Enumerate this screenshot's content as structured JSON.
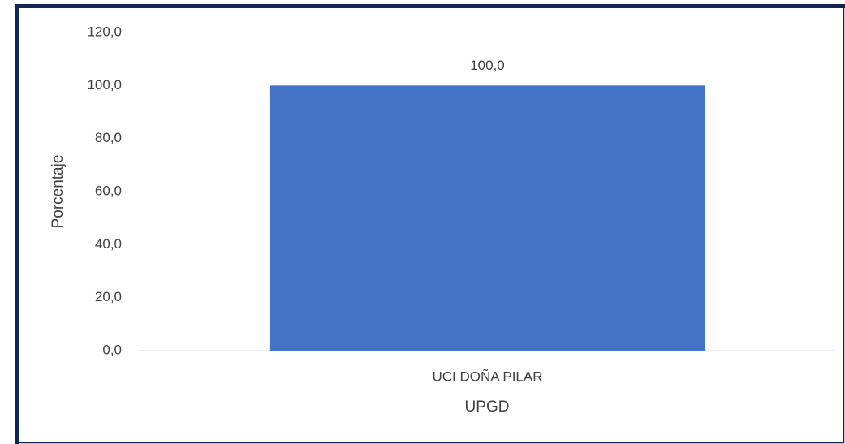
{
  "chart_data": {
    "type": "bar",
    "categories": [
      "UCI DOÑA PILAR"
    ],
    "values": [
      100
    ],
    "value_labels": [
      "100,0"
    ],
    "color": "#4472c4",
    "ylim": [
      0,
      120
    ],
    "yticks": [
      {
        "value": 0,
        "label": "0,0"
      },
      {
        "value": 20,
        "label": "20,0"
      },
      {
        "value": 40,
        "label": "40,0"
      },
      {
        "value": 60,
        "label": "60,0"
      },
      {
        "value": 80,
        "label": "80,0"
      },
      {
        "value": 100,
        "label": "100,0"
      },
      {
        "value": 120,
        "label": "120,0"
      }
    ],
    "x_label": "UPGD",
    "y_label": "Porcentaje",
    "grid": false
  }
}
